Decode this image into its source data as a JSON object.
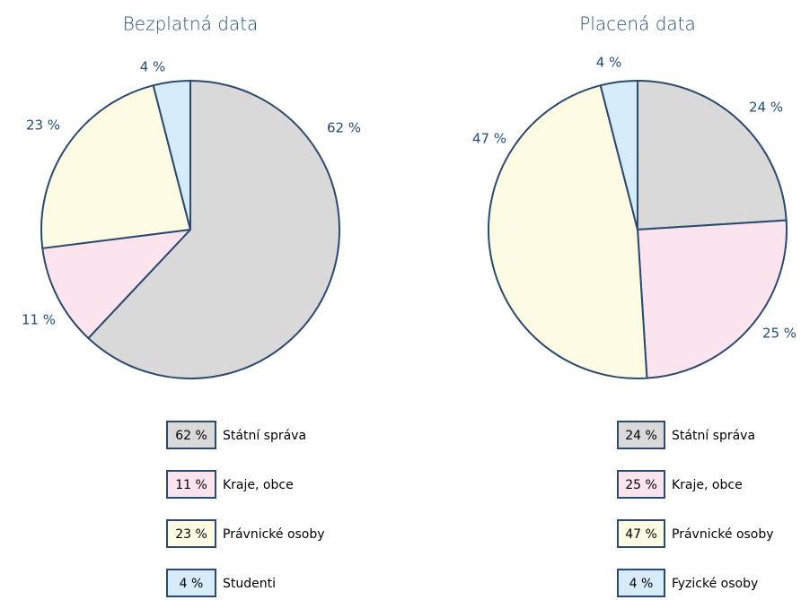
{
  "chart_data": [
    {
      "type": "pie",
      "title": "Bezplatná data",
      "categories": [
        "Státní správa",
        "Kraje, obce",
        "Právnické osoby",
        "Studenti"
      ],
      "values": [
        62,
        11,
        23,
        4
      ],
      "value_labels": [
        "62 %",
        "11 %",
        "23 %",
        "4 %"
      ],
      "colors": [
        "#d9d9d9",
        "#fce4ee",
        "#fdfbe3",
        "#d6ecfa"
      ]
    },
    {
      "type": "pie",
      "title": "Placená data",
      "categories": [
        "Státní správa",
        "Kraje, obce",
        "Právnické osoby",
        "Fyzické osoby"
      ],
      "values": [
        24,
        25,
        47,
        4
      ],
      "value_labels": [
        "24 %",
        "25 %",
        "47 %",
        "4 %"
      ],
      "colors": [
        "#d9d9d9",
        "#fce4ee",
        "#fdfbe3",
        "#d6ecfa"
      ]
    }
  ]
}
